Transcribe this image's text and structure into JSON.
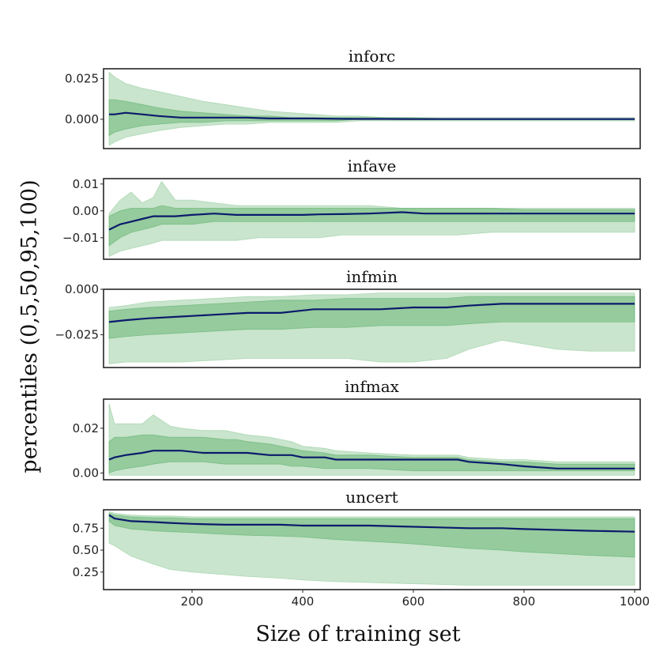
{
  "chart_data": {
    "type": "line",
    "ylabel": "percentiles (0,5,50,95,100)",
    "xlabel": "Size of training set",
    "xlim": [
      40,
      1010
    ],
    "xticks": [
      200,
      400,
      600,
      800,
      1000
    ],
    "colors": {
      "median": "#0b1a6b",
      "band_inner": "#4ea85a",
      "band_outer": "#7fc187",
      "frame": "#262626"
    },
    "panels": [
      {
        "title": "inforc",
        "ylim": [
          -0.018,
          0.031
        ],
        "yticks": [
          0.0,
          0.025
        ],
        "ytick_labels": [
          "0.000",
          "0.025"
        ],
        "x": [
          50,
          60,
          80,
          110,
          140,
          180,
          220,
          260,
          300,
          340,
          380,
          420,
          460,
          500,
          550,
          600,
          650,
          700,
          750,
          800,
          850,
          900,
          950,
          1000
        ],
        "p0": [
          -0.016,
          -0.014,
          -0.011,
          -0.009,
          -0.007,
          -0.005,
          -0.004,
          -0.003,
          -0.003,
          -0.002,
          -0.002,
          -0.002,
          -0.002,
          -0.001,
          -0.001,
          -0.001,
          -0.001,
          -0.001,
          -0.001,
          -0.001,
          -0.001,
          -0.001,
          -0.001,
          -0.001
        ],
        "p5": [
          -0.01,
          -0.008,
          -0.006,
          -0.004,
          -0.003,
          -0.002,
          -0.002,
          -0.001,
          -0.001,
          -0.001,
          -0.001,
          -0.001,
          -0.001,
          0.0,
          0.0,
          0.0,
          0.0,
          0.0,
          0.0,
          0.0,
          0.0,
          0.0,
          0.0,
          0.0
        ],
        "p50": [
          0.003,
          0.003,
          0.004,
          0.003,
          0.002,
          0.001,
          0.001,
          0.001,
          0.001,
          0.0005,
          0.0005,
          0.0005,
          0.0003,
          0.0002,
          0.0002,
          0.0001,
          0.0001,
          0.0001,
          0.0001,
          0.0001,
          0.0001,
          0.0001,
          0.0001,
          0.0001
        ],
        "p95": [
          0.012,
          0.012,
          0.011,
          0.009,
          0.007,
          0.005,
          0.004,
          0.003,
          0.002,
          0.002,
          0.001,
          0.001,
          0.001,
          0.001,
          0.001,
          0.001,
          0.0005,
          0.0005,
          0.0005,
          0.0005,
          0.0005,
          0.0005,
          0.0005,
          0.0005
        ],
        "p100": [
          0.029,
          0.026,
          0.022,
          0.019,
          0.017,
          0.014,
          0.011,
          0.009,
          0.007,
          0.005,
          0.004,
          0.003,
          0.002,
          0.002,
          0.001,
          0.001,
          0.001,
          0.001,
          0.001,
          0.001,
          0.001,
          0.001,
          0.001,
          0.001
        ]
      },
      {
        "title": "infave",
        "ylim": [
          -0.018,
          0.012
        ],
        "yticks": [
          -0.01,
          0.0,
          0.01
        ],
        "ytick_labels": [
          "−0.01",
          "0.00",
          "0.01"
        ],
        "x": [
          50,
          70,
          90,
          110,
          130,
          145,
          170,
          200,
          240,
          280,
          320,
          360,
          400,
          430,
          470,
          520,
          580,
          620,
          680,
          740,
          800,
          860,
          920,
          1000
        ],
        "p0": [
          -0.017,
          -0.015,
          -0.014,
          -0.013,
          -0.012,
          -0.011,
          -0.011,
          -0.011,
          -0.011,
          -0.011,
          -0.01,
          -0.01,
          -0.01,
          -0.01,
          -0.009,
          -0.009,
          -0.009,
          -0.009,
          -0.009,
          -0.008,
          -0.008,
          -0.008,
          -0.008,
          -0.008
        ],
        "p5": [
          -0.013,
          -0.01,
          -0.008,
          -0.007,
          -0.006,
          -0.005,
          -0.005,
          -0.005,
          -0.004,
          -0.004,
          -0.004,
          -0.004,
          -0.004,
          -0.004,
          -0.004,
          -0.004,
          -0.004,
          -0.004,
          -0.004,
          -0.004,
          -0.004,
          -0.004,
          -0.004,
          -0.004
        ],
        "p50": [
          -0.007,
          -0.005,
          -0.004,
          -0.003,
          -0.002,
          -0.002,
          -0.002,
          -0.0015,
          -0.001,
          -0.0015,
          -0.0015,
          -0.0015,
          -0.0015,
          -0.0013,
          -0.0012,
          -0.001,
          -0.0005,
          -0.001,
          -0.001,
          -0.001,
          -0.001,
          -0.001,
          -0.001,
          -0.001
        ],
        "p95": [
          -0.002,
          0.0,
          0.001,
          0.001,
          0.001,
          0.002,
          0.001,
          0.001,
          0.001,
          0.001,
          0.001,
          0.001,
          0.001,
          0.001,
          0.001,
          0.001,
          0.001,
          0.001,
          0.001,
          0.001,
          0.0005,
          0.0005,
          0.0005,
          0.0005
        ],
        "p100": [
          -0.001,
          0.004,
          0.007,
          0.003,
          0.005,
          0.011,
          0.004,
          0.004,
          0.003,
          0.002,
          0.002,
          0.002,
          0.002,
          0.002,
          0.002,
          0.002,
          0.001,
          0.001,
          0.001,
          0.001,
          0.001,
          0.001,
          0.001,
          0.001
        ]
      },
      {
        "title": "infmin",
        "ylim": [
          -0.043,
          0.0
        ],
        "yticks": [
          -0.025,
          0.0
        ],
        "ytick_labels": [
          "−0.025",
          "0.000"
        ],
        "x": [
          50,
          80,
          120,
          180,
          240,
          300,
          360,
          420,
          480,
          540,
          600,
          660,
          700,
          760,
          800,
          860,
          920,
          1000
        ],
        "p0": [
          -0.041,
          -0.04,
          -0.04,
          -0.04,
          -0.039,
          -0.038,
          -0.038,
          -0.038,
          -0.038,
          -0.04,
          -0.04,
          -0.038,
          -0.033,
          -0.028,
          -0.03,
          -0.033,
          -0.034,
          -0.034
        ],
        "p5": [
          -0.027,
          -0.026,
          -0.025,
          -0.024,
          -0.023,
          -0.022,
          -0.022,
          -0.021,
          -0.021,
          -0.02,
          -0.02,
          -0.02,
          -0.019,
          -0.018,
          -0.018,
          -0.018,
          -0.018,
          -0.018
        ],
        "p50": [
          -0.018,
          -0.017,
          -0.016,
          -0.015,
          -0.014,
          -0.013,
          -0.013,
          -0.011,
          -0.011,
          -0.011,
          -0.01,
          -0.01,
          -0.009,
          -0.008,
          -0.008,
          -0.008,
          -0.008,
          -0.008
        ],
        "p95": [
          -0.012,
          -0.011,
          -0.01,
          -0.009,
          -0.008,
          -0.007,
          -0.006,
          -0.006,
          -0.005,
          -0.005,
          -0.005,
          -0.005,
          -0.004,
          -0.004,
          -0.004,
          -0.004,
          -0.004,
          -0.004
        ],
        "p100": [
          -0.01,
          -0.009,
          -0.007,
          -0.006,
          -0.005,
          -0.004,
          -0.004,
          -0.003,
          -0.003,
          -0.002,
          -0.002,
          -0.002,
          -0.002,
          -0.002,
          -0.002,
          -0.002,
          -0.002,
          -0.002
        ]
      },
      {
        "title": "infmax",
        "ylim": [
          -0.003,
          0.033
        ],
        "yticks": [
          0.0,
          0.02
        ],
        "ytick_labels": [
          "0.00",
          "0.02"
        ],
        "x": [
          50,
          60,
          80,
          110,
          130,
          160,
          180,
          220,
          260,
          280,
          300,
          340,
          360,
          380,
          400,
          440,
          460,
          520,
          600,
          680,
          700,
          760,
          800,
          860,
          900,
          1000
        ],
        "p0": [
          -0.001,
          -0.001,
          -0.001,
          -0.001,
          -0.001,
          -0.001,
          -0.001,
          -0.001,
          -0.001,
          -0.001,
          -0.001,
          -0.001,
          -0.001,
          -0.001,
          -0.001,
          -0.001,
          -0.001,
          -0.001,
          -0.001,
          -0.001,
          -0.001,
          -0.001,
          -0.001,
          -0.001,
          -0.001,
          -0.001
        ],
        "p5": [
          0.0,
          0.001,
          0.002,
          0.003,
          0.004,
          0.005,
          0.005,
          0.005,
          0.004,
          0.004,
          0.004,
          0.004,
          0.004,
          0.003,
          0.003,
          0.002,
          0.002,
          0.002,
          0.001,
          0.001,
          0.001,
          0.001,
          0.001,
          0.001,
          0.001,
          0.001
        ],
        "p50": [
          0.006,
          0.007,
          0.008,
          0.009,
          0.01,
          0.01,
          0.01,
          0.009,
          0.009,
          0.009,
          0.009,
          0.008,
          0.008,
          0.008,
          0.007,
          0.007,
          0.006,
          0.006,
          0.006,
          0.006,
          0.005,
          0.004,
          0.003,
          0.002,
          0.002,
          0.002
        ],
        "p95": [
          0.014,
          0.016,
          0.016,
          0.017,
          0.017,
          0.016,
          0.016,
          0.016,
          0.015,
          0.015,
          0.014,
          0.013,
          0.012,
          0.011,
          0.01,
          0.009,
          0.008,
          0.008,
          0.007,
          0.007,
          0.006,
          0.005,
          0.005,
          0.004,
          0.004,
          0.004
        ],
        "p100": [
          0.031,
          0.022,
          0.022,
          0.022,
          0.026,
          0.021,
          0.02,
          0.019,
          0.019,
          0.018,
          0.017,
          0.016,
          0.015,
          0.014,
          0.012,
          0.011,
          0.01,
          0.009,
          0.008,
          0.008,
          0.007,
          0.006,
          0.006,
          0.005,
          0.005,
          0.005
        ]
      },
      {
        "title": "uncert",
        "ylim": [
          0.05,
          0.96
        ],
        "yticks": [
          0.25,
          0.5,
          0.75
        ],
        "ytick_labels": [
          "0.25",
          "0.50",
          "0.75"
        ],
        "x": [
          50,
          60,
          90,
          130,
          160,
          200,
          260,
          300,
          360,
          400,
          460,
          520,
          580,
          640,
          700,
          760,
          800,
          860,
          920,
          1000
        ],
        "p0": [
          0.58,
          0.55,
          0.43,
          0.34,
          0.28,
          0.25,
          0.22,
          0.2,
          0.18,
          0.16,
          0.14,
          0.13,
          0.12,
          0.11,
          0.1,
          0.1,
          0.1,
          0.1,
          0.1,
          0.1
        ],
        "p5": [
          0.83,
          0.78,
          0.74,
          0.72,
          0.71,
          0.7,
          0.68,
          0.67,
          0.66,
          0.65,
          0.62,
          0.6,
          0.58,
          0.55,
          0.52,
          0.5,
          0.48,
          0.46,
          0.44,
          0.42
        ],
        "p50": [
          0.9,
          0.86,
          0.83,
          0.82,
          0.81,
          0.8,
          0.79,
          0.79,
          0.79,
          0.78,
          0.78,
          0.78,
          0.77,
          0.76,
          0.75,
          0.75,
          0.74,
          0.73,
          0.72,
          0.71
        ],
        "p95": [
          0.92,
          0.9,
          0.88,
          0.87,
          0.87,
          0.86,
          0.86,
          0.86,
          0.86,
          0.86,
          0.86,
          0.86,
          0.86,
          0.86,
          0.86,
          0.86,
          0.86,
          0.86,
          0.86,
          0.86
        ],
        "p100": [
          0.94,
          0.92,
          0.9,
          0.89,
          0.89,
          0.88,
          0.88,
          0.88,
          0.88,
          0.88,
          0.88,
          0.88,
          0.88,
          0.88,
          0.88,
          0.88,
          0.88,
          0.88,
          0.88,
          0.88
        ]
      }
    ]
  }
}
